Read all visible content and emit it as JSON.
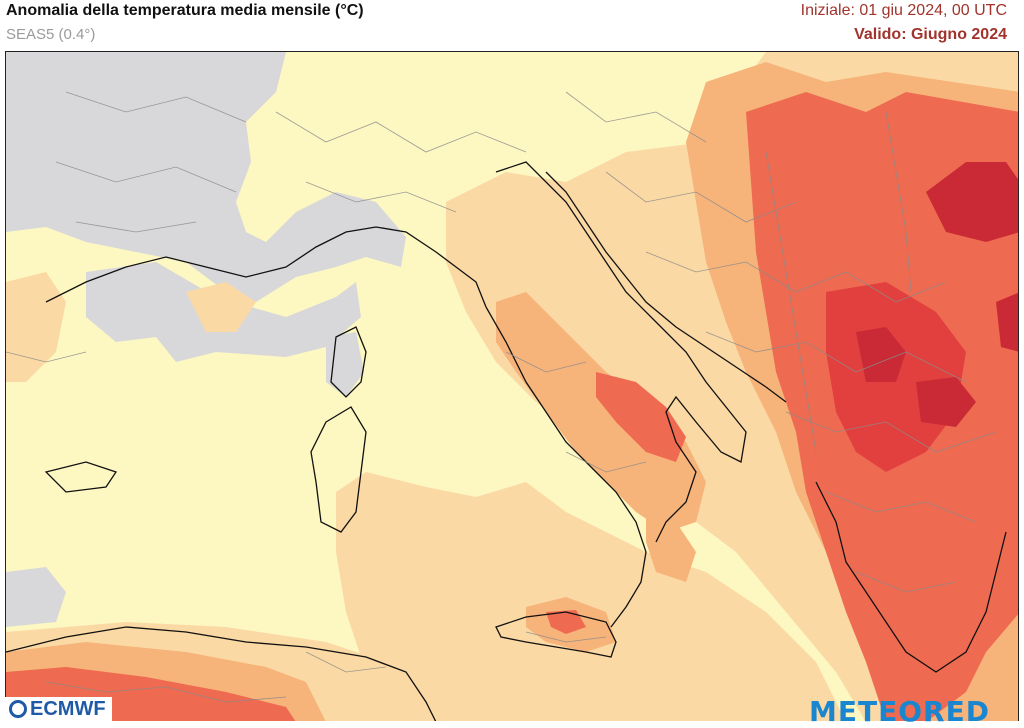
{
  "header": {
    "title": "Anomalia della temperatura media mensile (°C)",
    "subtitle": "SEAS5 (0.4°)",
    "init": "Iniziale: 01 giu 2024, 00 UTC",
    "valid": "Valido: Giugno 2024"
  },
  "logos": {
    "ecmwf": "ECMWF",
    "meteored": "METEORED"
  },
  "colors": {
    "neutral_gray": "#d8d8da",
    "light_yellow": "#fdf7c1",
    "light_orange": "#fbd9a4",
    "orange": "#f6b37a",
    "red_orange": "#ee6a50",
    "red": "#e2403e",
    "dark_red": "#c92a35",
    "coast": "#111111",
    "borders": "#8b8b8b",
    "header_accent": "#a0342c"
  }
}
